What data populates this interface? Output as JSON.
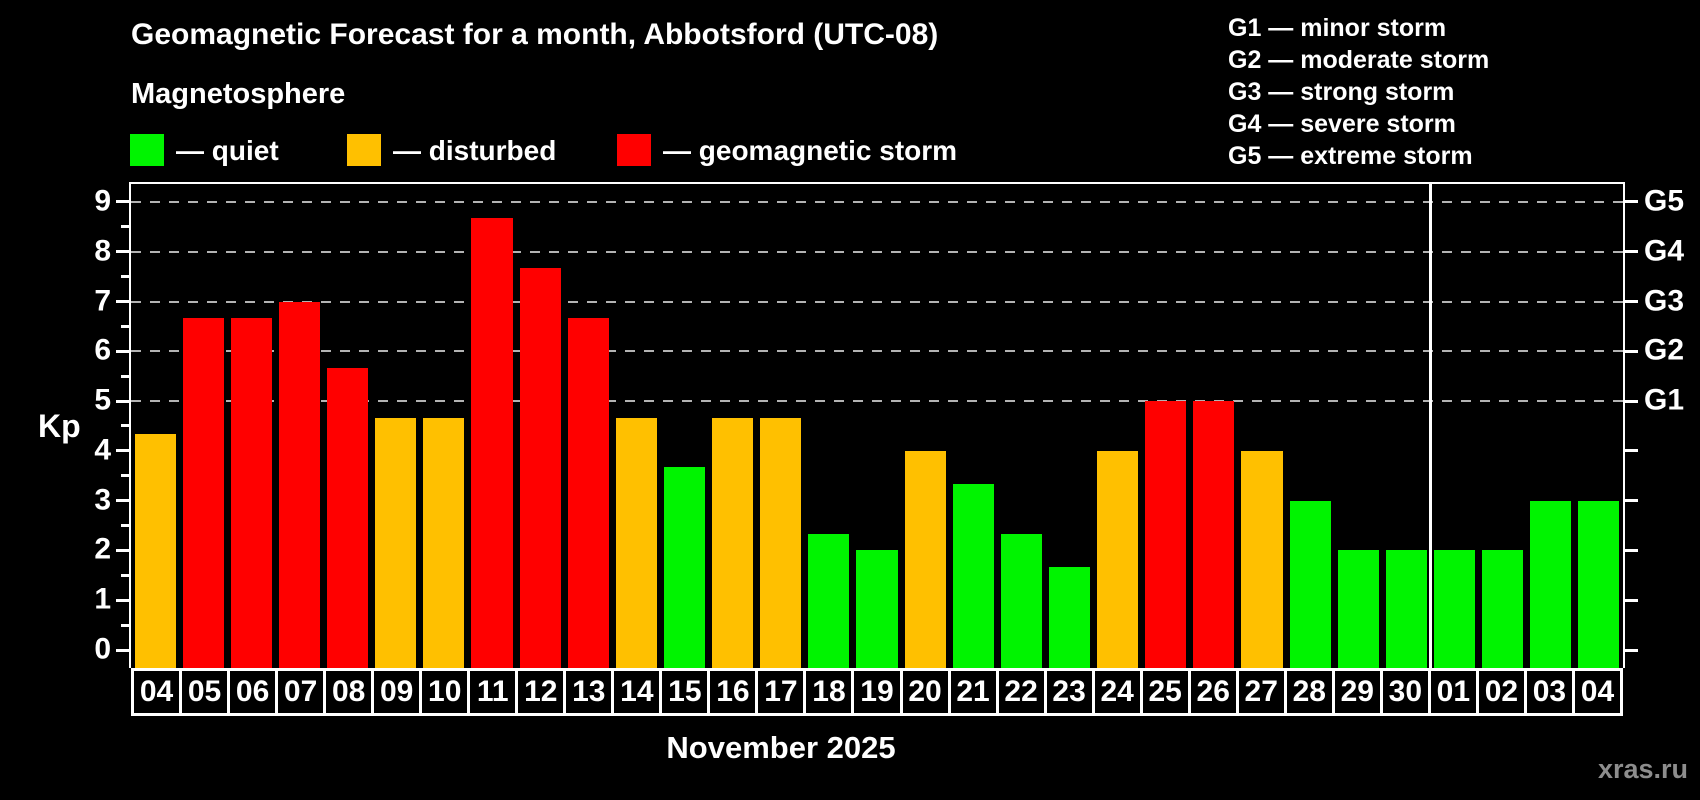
{
  "title": "Geomagnetic Forecast for a month, Abbotsford (UTC-08)",
  "subtitle": "Magnetosphere",
  "colors": {
    "quiet": "#00f400",
    "disturbed": "#ffc000",
    "storm": "#ff0000",
    "grid": "#b3b3b3",
    "axis": "#ffffff",
    "watermark": "#8d8d8d"
  },
  "legend": {
    "items": [
      {
        "key": "quiet",
        "label": "— quiet"
      },
      {
        "key": "disturbed",
        "label": "— disturbed"
      },
      {
        "key": "storm",
        "label": "— geomagnetic storm"
      }
    ]
  },
  "storm_scale": {
    "lines": [
      "G1 — minor storm",
      "G2 — moderate storm",
      "G3 — strong storm",
      "G4 — severe storm",
      "G5 — extreme storm"
    ]
  },
  "chart_data": {
    "type": "bar",
    "title": "Geomagnetic Forecast for a month, Abbotsford (UTC-08)",
    "ylabel": "Kp",
    "xlabel": "November 2025",
    "ylim": [
      0,
      9
    ],
    "y_ticks": [
      0,
      1,
      2,
      3,
      4,
      5,
      6,
      7,
      8,
      9
    ],
    "gridlines_kp": [
      5,
      6,
      7,
      8,
      9
    ],
    "grid": "dashed horizontal at Kp 5-9 only",
    "legend_position": "top",
    "right_axis_labels": [
      {
        "text": "G1",
        "kp": 5
      },
      {
        "text": "G2",
        "kp": 6
      },
      {
        "text": "G3",
        "kp": 7
      },
      {
        "text": "G4",
        "kp": 8
      },
      {
        "text": "G5",
        "kp": 9
      }
    ],
    "month_boundary_after_index": 26,
    "bars": [
      {
        "day": "04",
        "kp": 4.33,
        "status": "disturbed"
      },
      {
        "day": "05",
        "kp": 6.67,
        "status": "storm"
      },
      {
        "day": "06",
        "kp": 6.67,
        "status": "storm"
      },
      {
        "day": "07",
        "kp": 7.0,
        "status": "storm"
      },
      {
        "day": "08",
        "kp": 5.67,
        "status": "storm"
      },
      {
        "day": "09",
        "kp": 4.67,
        "status": "disturbed"
      },
      {
        "day": "10",
        "kp": 4.67,
        "status": "disturbed"
      },
      {
        "day": "11",
        "kp": 8.67,
        "status": "storm"
      },
      {
        "day": "12",
        "kp": 7.67,
        "status": "storm"
      },
      {
        "day": "13",
        "kp": 6.67,
        "status": "storm"
      },
      {
        "day": "14",
        "kp": 4.67,
        "status": "disturbed"
      },
      {
        "day": "15",
        "kp": 3.67,
        "status": "quiet"
      },
      {
        "day": "16",
        "kp": 4.67,
        "status": "disturbed"
      },
      {
        "day": "17",
        "kp": 4.67,
        "status": "disturbed"
      },
      {
        "day": "18",
        "kp": 2.33,
        "status": "quiet"
      },
      {
        "day": "19",
        "kp": 2.0,
        "status": "quiet"
      },
      {
        "day": "20",
        "kp": 4.0,
        "status": "disturbed"
      },
      {
        "day": "21",
        "kp": 3.33,
        "status": "quiet"
      },
      {
        "day": "22",
        "kp": 2.33,
        "status": "quiet"
      },
      {
        "day": "23",
        "kp": 1.67,
        "status": "quiet"
      },
      {
        "day": "24",
        "kp": 4.0,
        "status": "disturbed"
      },
      {
        "day": "25",
        "kp": 5.0,
        "status": "storm"
      },
      {
        "day": "26",
        "kp": 5.0,
        "status": "storm"
      },
      {
        "day": "27",
        "kp": 4.0,
        "status": "disturbed"
      },
      {
        "day": "28",
        "kp": 3.0,
        "status": "quiet"
      },
      {
        "day": "29",
        "kp": 2.0,
        "status": "quiet"
      },
      {
        "day": "30",
        "kp": 2.0,
        "status": "quiet"
      },
      {
        "day": "01",
        "kp": 2.0,
        "status": "quiet"
      },
      {
        "day": "02",
        "kp": 2.0,
        "status": "quiet"
      },
      {
        "day": "03",
        "kp": 3.0,
        "status": "quiet"
      },
      {
        "day": "04",
        "kp": 3.0,
        "status": "quiet"
      }
    ]
  },
  "month_label": "November 2025",
  "watermark": "xras.ru"
}
